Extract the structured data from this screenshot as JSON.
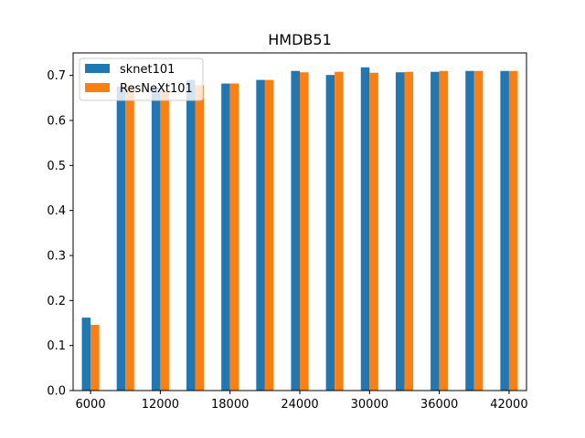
{
  "chart_data": {
    "type": "bar",
    "title": "HMDB51",
    "xlabel": "",
    "ylabel": "",
    "categories": [
      6000,
      9000,
      12000,
      15000,
      18000,
      21000,
      24000,
      27000,
      30000,
      33000,
      36000,
      39000,
      42000
    ],
    "x_tick_labels": [
      "6000",
      "12000",
      "18000",
      "24000",
      "30000",
      "36000",
      "42000"
    ],
    "y_ticks": [
      "0.0",
      "0.1",
      "0.2",
      "0.3",
      "0.4",
      "0.5",
      "0.6",
      "0.7"
    ],
    "ylim": [
      0,
      0.75
    ],
    "grid": false,
    "legend_position": "top-left",
    "series": [
      {
        "name": "sknet101",
        "color": "#1f77b4",
        "values": [
          0.162,
          0.675,
          0.673,
          0.69,
          0.682,
          0.69,
          0.71,
          0.701,
          0.718,
          0.707,
          0.708,
          0.71,
          0.71
        ]
      },
      {
        "name": "ResNeXt101",
        "color": "#ff7f0e",
        "values": [
          0.146,
          0.675,
          0.668,
          0.678,
          0.682,
          0.69,
          0.707,
          0.708,
          0.706,
          0.708,
          0.71,
          0.71,
          0.71
        ]
      }
    ]
  }
}
